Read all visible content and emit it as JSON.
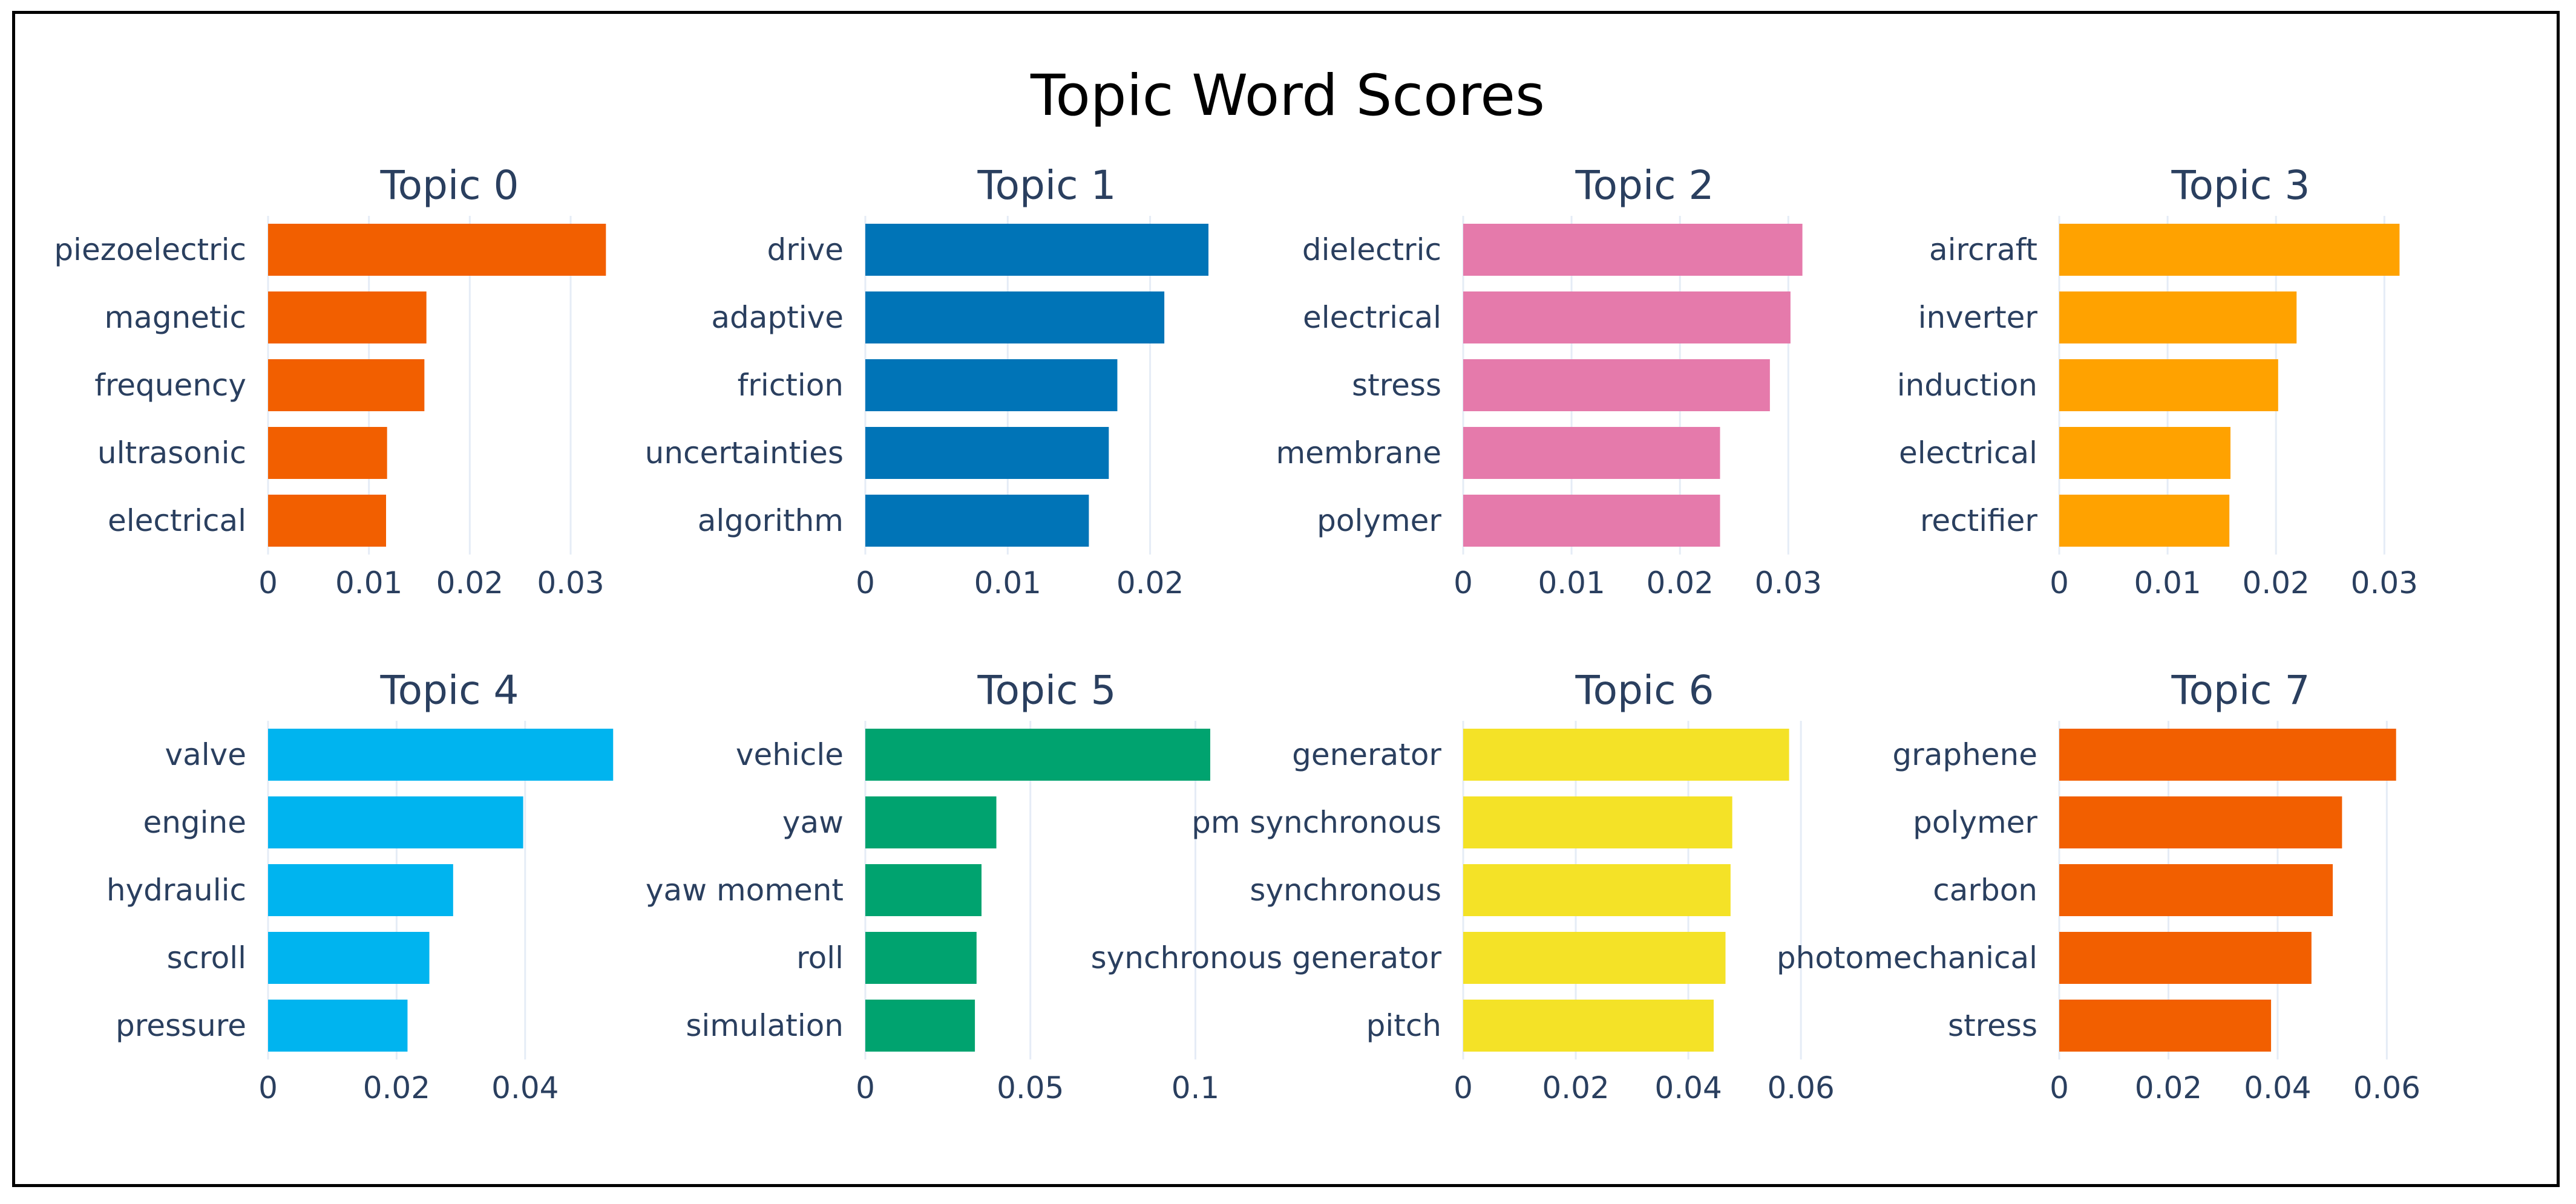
{
  "title": "Topic Word Scores",
  "chart_data": {
    "type": "bar",
    "orientation": "horizontal",
    "title": "Topic Word Scores",
    "grid": true,
    "panels": [
      {
        "title": "Topic 0",
        "color": "#f25f00",
        "xlim": [
          0,
          0.036
        ],
        "ticks": [
          0,
          0.01,
          0.02,
          0.03
        ],
        "tick_labels": [
          "0",
          "0.01",
          "0.02",
          "0.03"
        ],
        "categories": [
          "piezoelectric",
          "magnetic",
          "frequency",
          "ultrasonic",
          "electrical"
        ],
        "values": [
          0.0335,
          0.0157,
          0.0155,
          0.0118,
          0.0117
        ]
      },
      {
        "title": "Topic 1",
        "color": "#0074b7",
        "xlim": [
          0,
          0.0255
        ],
        "ticks": [
          0,
          0.01,
          0.02
        ],
        "tick_labels": [
          "0",
          "0.01",
          "0.02"
        ],
        "categories": [
          "drive",
          "adaptive",
          "friction",
          "uncertainties",
          "algorithm"
        ],
        "values": [
          0.0241,
          0.021,
          0.0177,
          0.0171,
          0.0157
        ]
      },
      {
        "title": "Topic 2",
        "color": "#e57aab",
        "xlim": [
          0,
          0.0335
        ],
        "ticks": [
          0,
          0.01,
          0.02,
          0.03
        ],
        "tick_labels": [
          "0",
          "0.01",
          "0.02",
          "0.03"
        ],
        "categories": [
          "dielectric",
          "electrical",
          "stress",
          "membrane",
          "polymer"
        ],
        "values": [
          0.0313,
          0.0302,
          0.0283,
          0.0237,
          0.0237
        ]
      },
      {
        "title": "Topic 3",
        "color": "#ffa200",
        "xlim": [
          0,
          0.0335
        ],
        "ticks": [
          0,
          0.01,
          0.02,
          0.03
        ],
        "tick_labels": [
          "0",
          "0.01",
          "0.02",
          "0.03"
        ],
        "categories": [
          "aircraft",
          "inverter",
          "induction",
          "electrical",
          "rectifier"
        ],
        "values": [
          0.0314,
          0.0219,
          0.0202,
          0.0158,
          0.0157
        ]
      },
      {
        "title": "Topic 4",
        "color": "#00b4ef",
        "xlim": [
          0,
          0.0565
        ],
        "ticks": [
          0,
          0.02,
          0.04
        ],
        "tick_labels": [
          "0",
          "0.02",
          "0.04"
        ],
        "categories": [
          "valve",
          "engine",
          "hydraulic",
          "scroll",
          "pressure"
        ],
        "values": [
          0.0537,
          0.0397,
          0.0288,
          0.0251,
          0.0217
        ]
      },
      {
        "title": "Topic 5",
        "color": "#00a36f",
        "xlim": [
          0,
          0.11
        ],
        "ticks": [
          0,
          0.05,
          0.1
        ],
        "tick_labels": [
          "0",
          "0.05",
          "0.1"
        ],
        "categories": [
          "vehicle",
          "yaw",
          "yaw moment",
          "roll",
          "simulation"
        ],
        "values": [
          0.1045,
          0.0397,
          0.0352,
          0.0337,
          0.0332
        ]
      },
      {
        "title": "Topic 6",
        "color": "#f4e227",
        "xlim": [
          0,
          0.0645
        ],
        "ticks": [
          0,
          0.02,
          0.04,
          0.06
        ],
        "tick_labels": [
          "0",
          "0.02",
          "0.04",
          "0.06"
        ],
        "categories": [
          "generator",
          "pm synchronous",
          "synchronous",
          "synchronous generator",
          "pitch"
        ],
        "values": [
          0.0579,
          0.0478,
          0.0475,
          0.0466,
          0.0445
        ]
      },
      {
        "title": "Topic 7",
        "color": "#f25f00",
        "xlim": [
          0,
          0.0665
        ],
        "ticks": [
          0,
          0.02,
          0.04,
          0.06
        ],
        "tick_labels": [
          "0",
          "0.02",
          "0.04",
          "0.06"
        ],
        "categories": [
          "graphene",
          "polymer",
          "carbon",
          "photomechanical",
          "stress"
        ],
        "values": [
          0.0617,
          0.0518,
          0.0501,
          0.0462,
          0.0388
        ]
      }
    ]
  }
}
